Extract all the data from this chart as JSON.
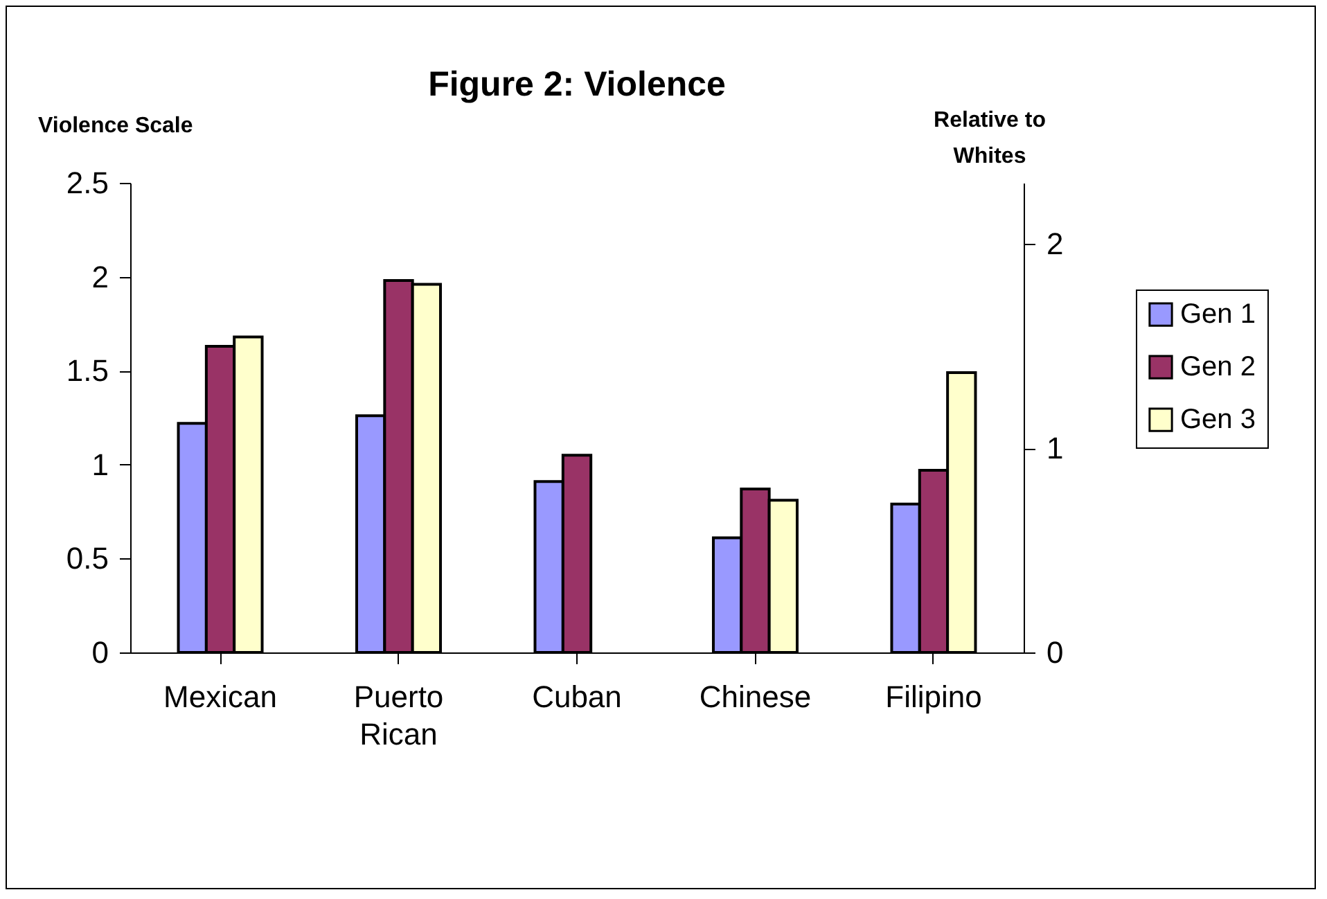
{
  "chart_data": {
    "type": "bar",
    "title": "Figure 2: Violence",
    "ylabel": "Violence Scale",
    "y2label": "Relative to Whites",
    "categories": [
      "Mexican",
      "Puerto Rican",
      "Cuban",
      "Chinese",
      "Filipino"
    ],
    "series": [
      {
        "name": "Gen 1",
        "color": "#9999ff",
        "values": [
          1.22,
          1.26,
          0.91,
          0.61,
          0.79
        ]
      },
      {
        "name": "Gen 2",
        "color": "#993366",
        "values": [
          1.63,
          1.98,
          1.05,
          0.87,
          0.97
        ]
      },
      {
        "name": "Gen 3",
        "color": "#ffffcc",
        "values": [
          1.68,
          1.96,
          null,
          0.81,
          1.49
        ]
      }
    ],
    "ylim": [
      0,
      2.5
    ],
    "yticks": [
      0,
      0.5,
      1,
      1.5,
      2,
      2.5
    ],
    "y2lim": [
      0,
      2.3
    ],
    "y2ticks": [
      0,
      1,
      2
    ],
    "grid": false,
    "legend": "right"
  }
}
